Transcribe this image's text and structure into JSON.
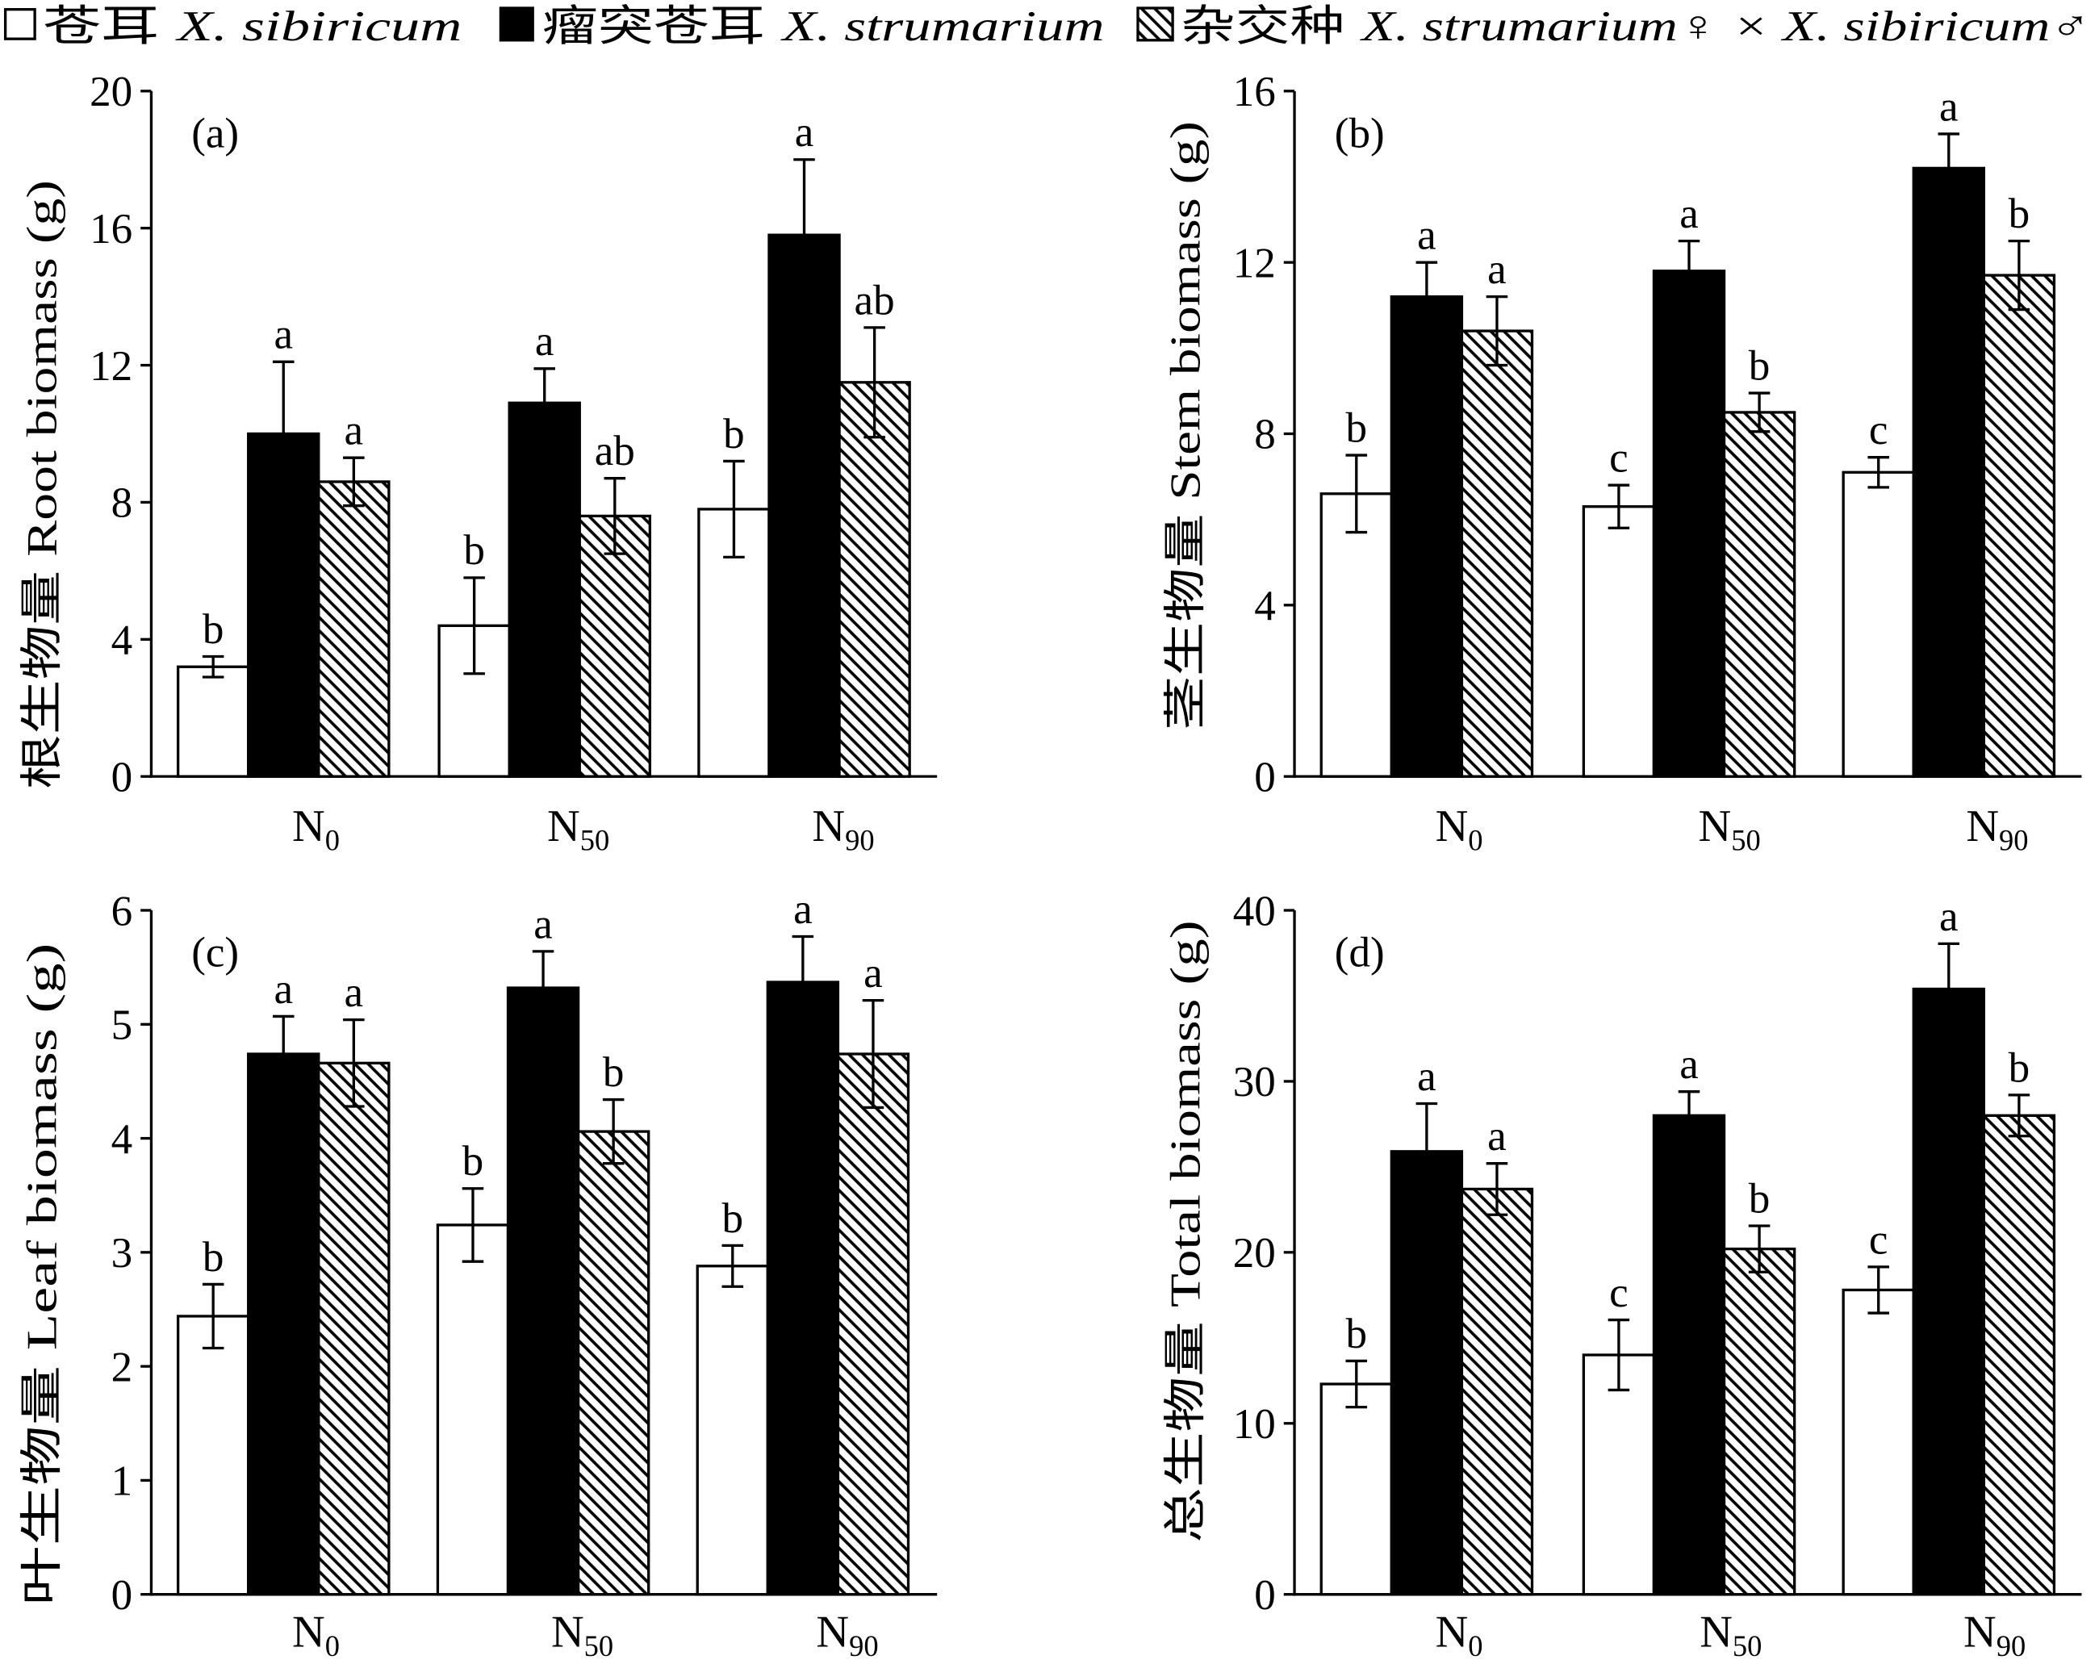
{
  "legend": [
    {
      "cn": "苍耳",
      "latin": "X. sibiricum",
      "fill": "#ffffff",
      "hatch": false
    },
    {
      "cn": "瘤突苍耳",
      "latin": "X. strumarium",
      "fill": "#000000",
      "hatch": false
    },
    {
      "cn": "杂交种",
      "latin": "X. strumarium♀ × X. sibiricum♂",
      "fill": "#ffffff",
      "hatch": true
    }
  ],
  "chart_data": [
    {
      "type": "bar",
      "panel_label": "(a)",
      "ylabel": "根生物量 Root biomass (g)",
      "categories": [
        "N0",
        "N50",
        "N90"
      ],
      "ylim": [
        0,
        20
      ],
      "yticks": [
        0,
        4,
        8,
        12,
        16,
        20
      ],
      "series": [
        {
          "values": [
            3.2,
            4.4,
            7.8
          ],
          "errors": [
            0.3,
            1.4,
            1.4
          ],
          "letters": [
            "b",
            "b",
            "b"
          ]
        },
        {
          "values": [
            10.0,
            10.9,
            15.8
          ],
          "errors": [
            2.1,
            1.0,
            2.2
          ],
          "letters": [
            "a",
            "a",
            "a"
          ]
        },
        {
          "values": [
            8.6,
            7.6,
            11.5
          ],
          "errors": [
            0.7,
            1.1,
            1.6
          ],
          "letters": [
            "a",
            "ab",
            "ab"
          ]
        }
      ]
    },
    {
      "type": "bar",
      "panel_label": "(b)",
      "ylabel": "茎生物量 Stem biomass (g)",
      "categories": [
        "N0",
        "N50",
        "N90"
      ],
      "ylim": [
        0,
        16
      ],
      "yticks": [
        0,
        4,
        8,
        12,
        16
      ],
      "series": [
        {
          "values": [
            6.6,
            6.3,
            7.1
          ],
          "errors": [
            0.9,
            0.5,
            0.35
          ],
          "letters": [
            "b",
            "c",
            "c"
          ]
        },
        {
          "values": [
            11.2,
            11.8,
            14.2
          ],
          "errors": [
            0.8,
            0.7,
            0.8
          ],
          "letters": [
            "a",
            "a",
            "a"
          ]
        },
        {
          "values": [
            10.4,
            8.5,
            11.7
          ],
          "errors": [
            0.8,
            0.45,
            0.8
          ],
          "letters": [
            "a",
            "b",
            "b"
          ]
        }
      ]
    },
    {
      "type": "bar",
      "panel_label": "(c)",
      "ylabel": "叶生物量 Leaf biomass (g)",
      "categories": [
        "N0",
        "N50",
        "N90"
      ],
      "ylim": [
        0,
        6
      ],
      "yticks": [
        0,
        1,
        2,
        3,
        4,
        5,
        6
      ],
      "series": [
        {
          "values": [
            2.44,
            3.24,
            2.88
          ],
          "errors": [
            0.28,
            0.32,
            0.18
          ],
          "letters": [
            "b",
            "b",
            "b"
          ]
        },
        {
          "values": [
            4.74,
            5.32,
            5.37
          ],
          "errors": [
            0.33,
            0.32,
            0.4
          ],
          "letters": [
            "a",
            "a",
            "a"
          ]
        },
        {
          "values": [
            4.66,
            4.06,
            4.74
          ],
          "errors": [
            0.38,
            0.28,
            0.47
          ],
          "letters": [
            "a",
            "b",
            "a"
          ]
        }
      ]
    },
    {
      "type": "bar",
      "panel_label": "(d)",
      "ylabel": "总生物量 Total biomass (g)",
      "categories": [
        "N0",
        "N50",
        "N90"
      ],
      "ylim": [
        0,
        40
      ],
      "yticks": [
        0,
        10,
        20,
        30,
        40
      ],
      "series": [
        {
          "values": [
            12.3,
            14.0,
            17.8
          ],
          "errors": [
            1.35,
            2.05,
            1.35
          ],
          "letters": [
            "b",
            "c",
            "c"
          ]
        },
        {
          "values": [
            25.9,
            28.0,
            35.4
          ],
          "errors": [
            2.8,
            1.4,
            2.65
          ],
          "letters": [
            "a",
            "a",
            "a"
          ]
        },
        {
          "values": [
            23.7,
            20.2,
            28.0
          ],
          "errors": [
            1.5,
            1.35,
            1.2
          ],
          "letters": [
            "a",
            "b",
            "b"
          ]
        }
      ]
    }
  ]
}
